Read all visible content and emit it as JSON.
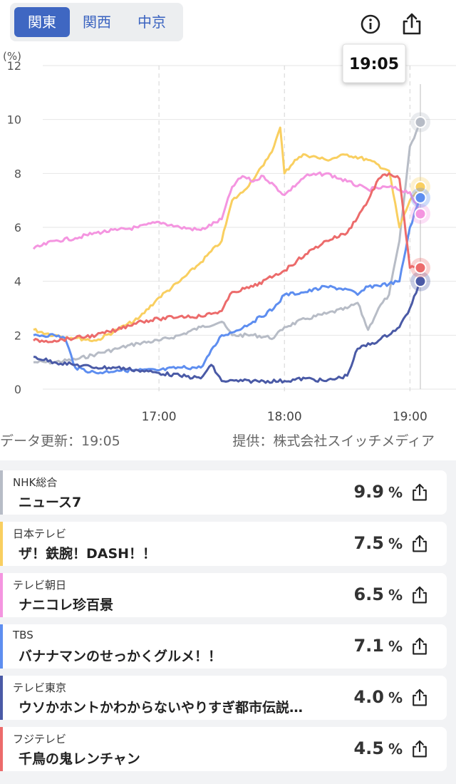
{
  "region_tabs": [
    {
      "label": "関東",
      "active": true
    },
    {
      "label": "関西",
      "active": false
    },
    {
      "label": "中京",
      "active": false
    }
  ],
  "header": {
    "info_icon": "info-icon",
    "share_icon": "share-icon",
    "current_time_label": "19:05"
  },
  "chart_data": {
    "type": "line",
    "ylabel": "(%)",
    "ylim": [
      0,
      12
    ],
    "yticks": [
      "0",
      "2",
      "4",
      "6",
      "8",
      "10",
      "12"
    ],
    "xlim": [
      "16:00",
      "19:05"
    ],
    "xticks": [
      "17:00",
      "18:00",
      "19:00"
    ],
    "grid": true,
    "series": [
      {
        "name": "NHK総合",
        "color": "#b7bcc6",
        "x": [
          "16:00",
          "16:10",
          "16:20",
          "16:30",
          "16:40",
          "16:50",
          "17:00",
          "17:10",
          "17:20",
          "17:30",
          "17:35",
          "17:45",
          "17:55",
          "18:00",
          "18:10",
          "18:20",
          "18:30",
          "18:35",
          "18:40",
          "18:45",
          "18:50",
          "18:55",
          "19:00",
          "19:05"
        ],
        "values": [
          1.0,
          1.0,
          1.1,
          1.3,
          1.5,
          1.7,
          1.8,
          2.0,
          2.3,
          2.5,
          2.0,
          2.0,
          1.9,
          2.3,
          2.6,
          2.8,
          3.0,
          3.2,
          2.2,
          3.0,
          3.5,
          5.5,
          9.0,
          9.9
        ]
      },
      {
        "name": "日本テレビ",
        "color": "#f9cf60",
        "x": [
          "16:00",
          "16:10",
          "16:20",
          "16:30",
          "16:40",
          "16:50",
          "17:00",
          "17:10",
          "17:20",
          "17:30",
          "17:35",
          "17:40",
          "17:50",
          "17:55",
          "17:58",
          "18:00",
          "18:05",
          "18:10",
          "18:20",
          "18:30",
          "18:40",
          "18:50",
          "18:55",
          "19:00",
          "19:05"
        ],
        "values": [
          2.2,
          2.0,
          1.9,
          1.8,
          2.2,
          2.6,
          3.4,
          4.0,
          4.7,
          5.5,
          7.0,
          7.3,
          8.3,
          9.0,
          9.7,
          8.0,
          8.5,
          8.7,
          8.5,
          8.7,
          8.5,
          8.1,
          6.0,
          7.0,
          7.5
        ]
      },
      {
        "name": "テレビ朝日",
        "color": "#f495e0",
        "x": [
          "16:00",
          "16:10",
          "16:20",
          "16:30",
          "16:40",
          "16:50",
          "17:00",
          "17:10",
          "17:20",
          "17:30",
          "17:35",
          "17:40",
          "17:45",
          "17:50",
          "18:00",
          "18:10",
          "18:20",
          "18:30",
          "18:40",
          "18:50",
          "19:00",
          "19:05"
        ],
        "values": [
          5.2,
          5.5,
          5.6,
          5.8,
          5.9,
          6.0,
          6.2,
          6.0,
          5.9,
          6.3,
          7.5,
          7.9,
          7.7,
          7.9,
          7.2,
          7.9,
          8.0,
          7.7,
          7.4,
          7.5,
          7.3,
          6.5
        ]
      },
      {
        "name": "TBS",
        "color": "#5e8ef0",
        "x": [
          "16:00",
          "16:10",
          "16:15",
          "16:20",
          "16:30",
          "16:40",
          "16:50",
          "17:00",
          "17:10",
          "17:20",
          "17:30",
          "17:35",
          "17:45",
          "17:55",
          "18:00",
          "18:10",
          "18:20",
          "18:30",
          "18:35",
          "18:40",
          "18:50",
          "18:55",
          "19:00",
          "19:05"
        ],
        "values": [
          2.0,
          2.0,
          1.9,
          0.8,
          0.6,
          0.7,
          0.7,
          0.7,
          0.8,
          0.8,
          2.0,
          2.1,
          2.5,
          3.0,
          3.5,
          3.6,
          3.8,
          3.7,
          3.5,
          3.8,
          3.9,
          4.0,
          6.0,
          7.1
        ]
      },
      {
        "name": "テレビ東京",
        "color": "#4a5aa6",
        "x": [
          "16:00",
          "16:10",
          "16:20",
          "16:30",
          "16:40",
          "16:50",
          "17:00",
          "17:10",
          "17:20",
          "17:25",
          "17:30",
          "17:40",
          "17:50",
          "18:00",
          "18:10",
          "18:20",
          "18:30",
          "18:35",
          "18:45",
          "18:55",
          "19:00",
          "19:05"
        ],
        "values": [
          1.2,
          1.0,
          0.9,
          0.8,
          0.8,
          0.7,
          0.6,
          0.5,
          0.4,
          0.9,
          0.3,
          0.3,
          0.3,
          0.3,
          0.4,
          0.3,
          0.5,
          1.5,
          1.8,
          2.3,
          3.0,
          4.0
        ]
      },
      {
        "name": "フジテレビ",
        "color": "#ec6b6b",
        "x": [
          "16:00",
          "16:10",
          "16:20",
          "16:30",
          "16:40",
          "16:50",
          "17:00",
          "17:10",
          "17:20",
          "17:30",
          "17:35",
          "17:45",
          "17:55",
          "18:00",
          "18:10",
          "18:20",
          "18:30",
          "18:40",
          "18:45",
          "18:50",
          "18:55",
          "19:00",
          "19:05"
        ],
        "values": [
          1.8,
          1.8,
          1.9,
          2.0,
          2.2,
          2.5,
          2.6,
          2.7,
          2.7,
          2.9,
          3.6,
          3.8,
          4.2,
          4.4,
          5.0,
          5.5,
          5.8,
          7.0,
          7.8,
          8.0,
          7.8,
          4.5,
          4.5
        ]
      }
    ]
  },
  "footer": {
    "updated": "データ更新：19:05",
    "provider": "提供：株式会社スイッチメディア"
  },
  "rows": [
    {
      "channel": "NHK総合",
      "program": "ニュース7",
      "rating": "9.9",
      "unit": "%",
      "color": "#b7bcc6"
    },
    {
      "channel": "日本テレビ",
      "program": "ザ！鉄腕！DASH！！",
      "rating": "7.5",
      "unit": "%",
      "color": "#f9cf60"
    },
    {
      "channel": "テレビ朝日",
      "program": "ナニコレ珍百景",
      "rating": "6.5",
      "unit": "%",
      "color": "#f495e0"
    },
    {
      "channel": "TBS",
      "program": "バナナマンのせっかくグルメ！！",
      "rating": "7.1",
      "unit": "%",
      "color": "#5e8ef0"
    },
    {
      "channel": "テレビ東京",
      "program": "ウソかホントかわからないやりすぎ都市伝説…",
      "rating": "4.0",
      "unit": "%",
      "color": "#4a5aa6"
    },
    {
      "channel": "フジテレビ",
      "program": "千鳥の鬼レンチャン",
      "rating": "4.5",
      "unit": "%",
      "color": "#ec6b6b"
    }
  ]
}
